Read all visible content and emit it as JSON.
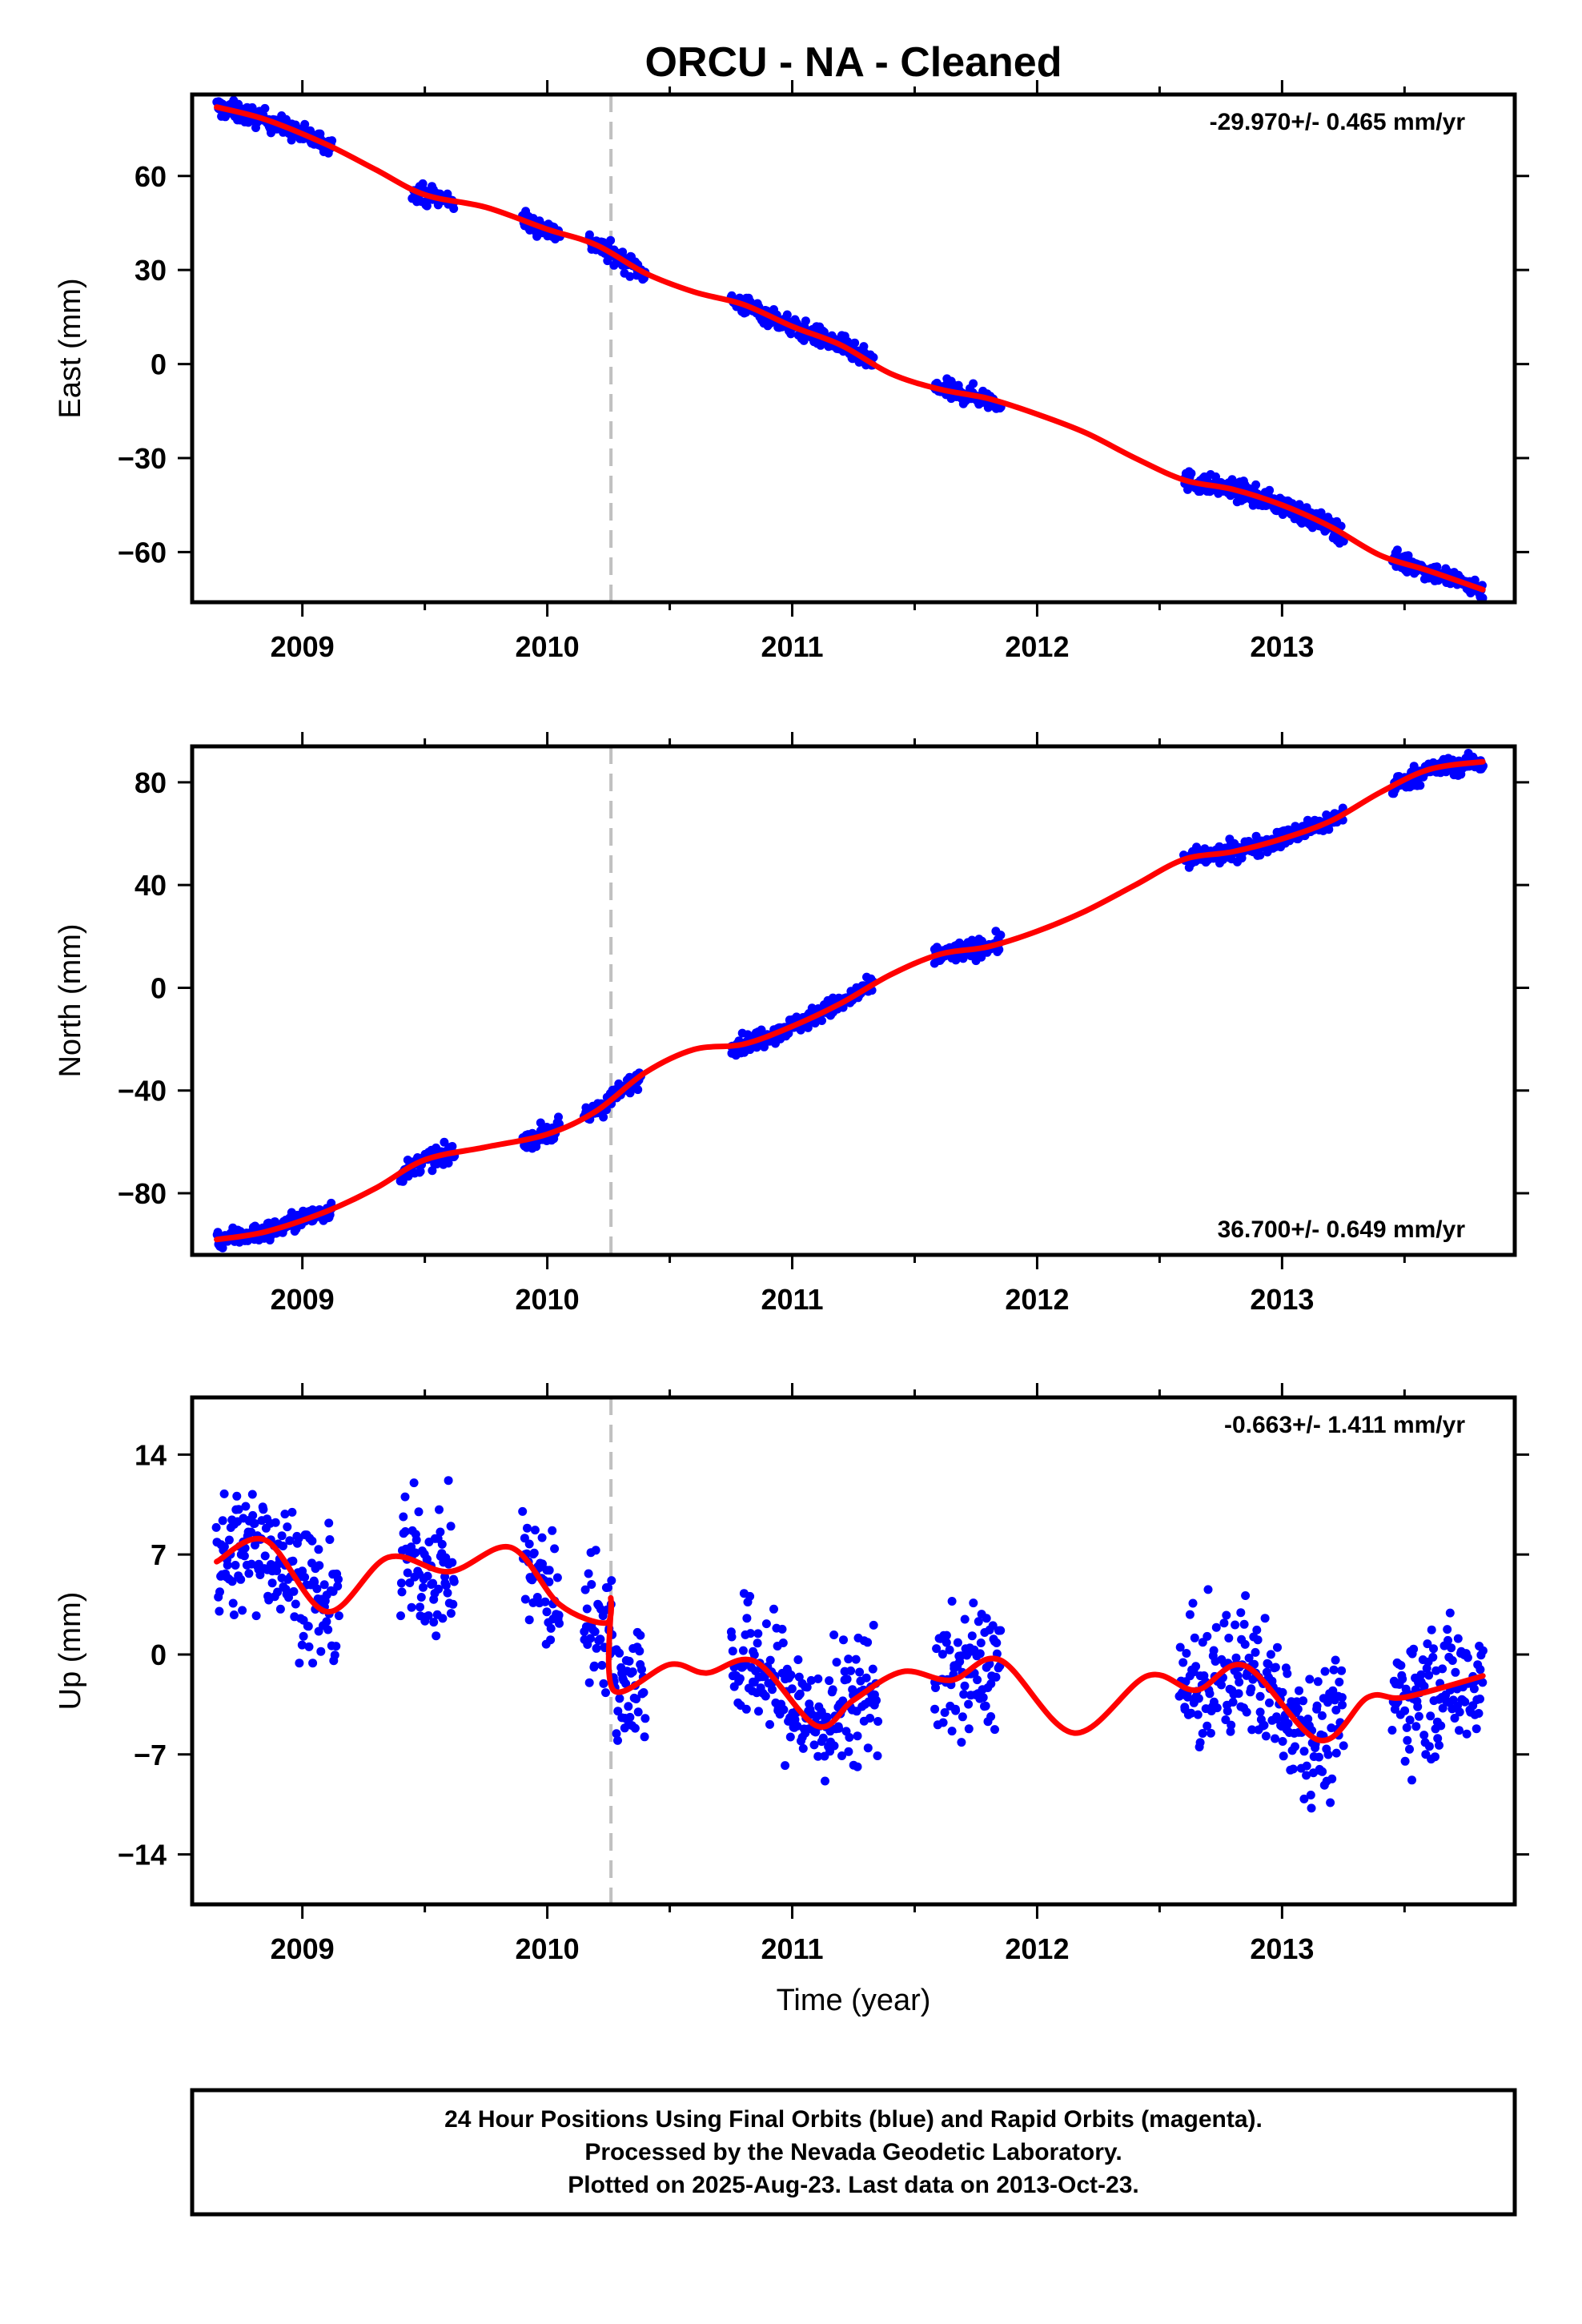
{
  "title": "ORCU  - NA - Cleaned",
  "colors": {
    "points": "#0000ff",
    "fit": "#ff0000",
    "event_line": "#c0c0c0",
    "frame": "#000000"
  },
  "chart_data": [
    {
      "type": "scatter",
      "name": "east",
      "ylabel": "East (mm)",
      "xlabel": "",
      "rate_label": "-29.970+/- 0.465 mm/yr",
      "rate_position": "top-right",
      "xlim": [
        2008.55,
        2013.95
      ],
      "ylim": [
        -76,
        86
      ],
      "xticks": [
        2009,
        2010,
        2011,
        2012,
        2013
      ],
      "xtick_labels": [
        "2009",
        "2010",
        "2011",
        "2012",
        "2013"
      ],
      "yticks": [
        -60,
        -30,
        0,
        30,
        60
      ],
      "ytick_labels": [
        "−60",
        "−30",
        "0",
        "30",
        "60"
      ],
      "event_lines": [
        2010.26
      ],
      "data_periods": [
        [
          2008.65,
          2009.12
        ],
        [
          2009.45,
          2009.62
        ],
        [
          2009.9,
          2010.05
        ],
        [
          2010.17,
          2010.4
        ],
        [
          2010.75,
          2011.33
        ],
        [
          2011.58,
          2011.85
        ],
        [
          2012.6,
          2013.25
        ],
        [
          2013.45,
          2013.82
        ]
      ],
      "fit": {
        "x": [
          2008.65,
          2008.85,
          2009.1,
          2009.3,
          2009.5,
          2009.75,
          2010.0,
          2010.2,
          2010.4,
          2010.6,
          2010.8,
          2011.0,
          2011.2,
          2011.4,
          2011.6,
          2011.8,
          2012.0,
          2012.2,
          2012.4,
          2012.6,
          2012.8,
          2013.0,
          2013.2,
          2013.4,
          2013.6,
          2013.82
        ],
        "y": [
          82,
          78,
          70,
          62,
          54,
          50,
          43,
          38,
          29,
          23,
          19,
          12,
          6,
          -3,
          -8,
          -11,
          -16,
          -22,
          -30,
          -37,
          -40,
          -45,
          -52,
          -61,
          -66,
          -72
        ]
      },
      "scatter": 2.2
    },
    {
      "type": "scatter",
      "name": "north",
      "ylabel": "North (mm)",
      "xlabel": "",
      "rate_label": "36.700+/- 0.649 mm/yr",
      "rate_position": "bottom-right",
      "xlim": [
        2008.55,
        2013.95
      ],
      "ylim": [
        -104,
        94
      ],
      "xticks": [
        2009,
        2010,
        2011,
        2012,
        2013
      ],
      "xtick_labels": [
        "2009",
        "2010",
        "2011",
        "2012",
        "2013"
      ],
      "yticks": [
        -80,
        -40,
        0,
        40,
        80
      ],
      "ytick_labels": [
        "−80",
        "−40",
        "0",
        "40",
        "80"
      ],
      "event_lines": [
        2010.26
      ],
      "data_periods": [
        [
          2008.65,
          2009.12
        ],
        [
          2009.4,
          2009.62
        ],
        [
          2009.9,
          2010.05
        ],
        [
          2010.15,
          2010.38
        ],
        [
          2010.75,
          2011.33
        ],
        [
          2011.58,
          2011.85
        ],
        [
          2012.6,
          2013.25
        ],
        [
          2013.45,
          2013.82
        ]
      ],
      "fit": {
        "x": [
          2008.65,
          2008.85,
          2009.1,
          2009.3,
          2009.5,
          2009.75,
          2010.0,
          2010.2,
          2010.4,
          2010.6,
          2010.8,
          2011.0,
          2011.2,
          2011.4,
          2011.6,
          2011.8,
          2012.0,
          2012.2,
          2012.4,
          2012.6,
          2012.8,
          2013.0,
          2013.2,
          2013.4,
          2013.6,
          2013.82
        ],
        "y": [
          -98,
          -95,
          -87,
          -78,
          -67,
          -62,
          -57,
          -48,
          -33,
          -24,
          -22,
          -15,
          -6,
          5,
          13,
          16,
          22,
          30,
          40,
          50,
          53,
          58,
          65,
          76,
          85,
          88
        ]
      },
      "scatter": 2.6
    },
    {
      "type": "scatter",
      "name": "up",
      "ylabel": "Up (mm)",
      "xlabel": "Time (year)",
      "rate_label": "-0.663+/- 1.411 mm/yr",
      "rate_position": "top-right",
      "xlim": [
        2008.55,
        2013.95
      ],
      "ylim": [
        -17.5,
        18
      ],
      "xticks": [
        2009,
        2010,
        2011,
        2012,
        2013
      ],
      "xtick_labels": [
        "2009",
        "2010",
        "2011",
        "2012",
        "2013"
      ],
      "yticks": [
        -14,
        -7,
        0,
        7,
        14
      ],
      "ytick_labels": [
        "−14",
        "−7",
        "0",
        "7",
        "14"
      ],
      "event_lines": [
        2010.26
      ],
      "data_periods": [
        [
          2008.65,
          2009.15
        ],
        [
          2009.4,
          2009.62
        ],
        [
          2009.9,
          2010.05
        ],
        [
          2010.15,
          2010.4
        ],
        [
          2010.75,
          2011.35
        ],
        [
          2011.58,
          2011.85
        ],
        [
          2012.58,
          2013.25
        ],
        [
          2013.45,
          2013.82
        ]
      ],
      "fit": {
        "x": [
          2008.65,
          2008.85,
          2009.1,
          2009.35,
          2009.6,
          2009.85,
          2010.05,
          2010.24,
          2010.26,
          2010.27,
          2010.5,
          2010.65,
          2010.85,
          2011.1,
          2011.25,
          2011.45,
          2011.65,
          2011.85,
          2012.15,
          2012.45,
          2012.65,
          2012.85,
          2013.15,
          2013.35,
          2013.5,
          2013.82
        ],
        "y": [
          6.5,
          8,
          3,
          6.8,
          5.8,
          7.5,
          3.5,
          2.2,
          3.8,
          -2.5,
          -0.7,
          -1.3,
          -0.5,
          -5,
          -3.2,
          -1.2,
          -1.8,
          -0.4,
          -5.5,
          -1.5,
          -2.5,
          -0.8,
          -6,
          -3,
          -3,
          -1.5
        ]
      },
      "scatter": 3.2
    }
  ],
  "footer": {
    "line1": "24 Hour Positions Using Final Orbits (blue) and Rapid Orbits (magenta).",
    "line2": "Processed by the Nevada Geodetic Laboratory.",
    "line3": "Plotted on 2025-Aug-23. Last data on 2013-Oct-23."
  }
}
